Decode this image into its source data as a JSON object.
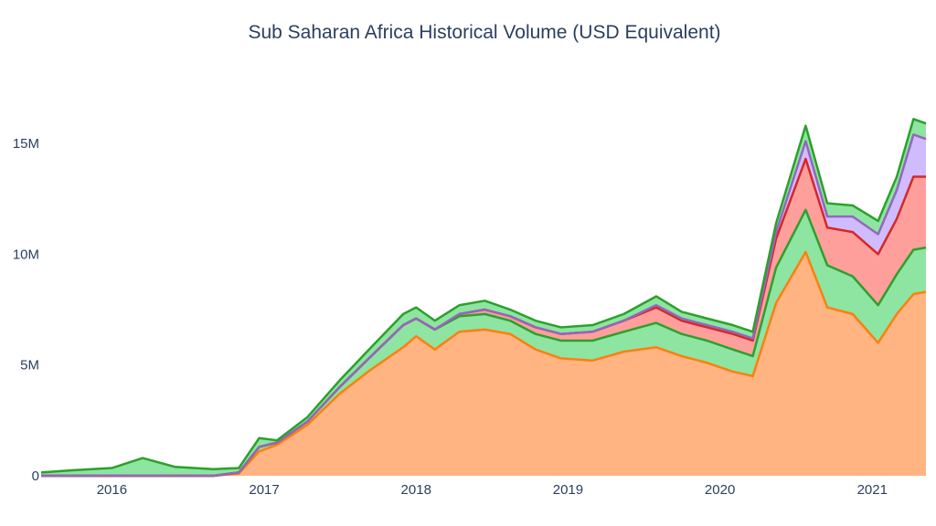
{
  "chart_data": {
    "type": "area",
    "title": "Sub Saharan Africa Historical Volume (USD Equivalent)",
    "xlabel": "",
    "ylabel": "",
    "x_ticks": [
      "2016",
      "2017",
      "2018",
      "2019",
      "2020",
      "2021"
    ],
    "y_ticks": [
      "0",
      "5M",
      "10M",
      "15M"
    ],
    "y_tick_values": [
      0,
      5000000,
      10000000,
      15000000
    ],
    "ylim": [
      0,
      19000000
    ],
    "xlim": [
      "2015-07-15",
      "2021-05-10"
    ],
    "stacked": true,
    "grid": false,
    "legend": "none",
    "dates": [
      "2015-07-15",
      "2015-10-01",
      "2016-01-01",
      "2016-03-15",
      "2016-06-01",
      "2016-09-01",
      "2016-11-01",
      "2016-12-20",
      "2017-02-01",
      "2017-04-15",
      "2017-07-01",
      "2017-09-15",
      "2017-12-01",
      "2018-01-01",
      "2018-02-15",
      "2018-04-15",
      "2018-06-15",
      "2018-08-15",
      "2018-10-15",
      "2018-12-15",
      "2019-03-01",
      "2019-05-15",
      "2019-08-01",
      "2019-10-01",
      "2019-12-01",
      "2020-02-01",
      "2020-03-20",
      "2020-05-15",
      "2020-07-25",
      "2020-09-15",
      "2020-11-15",
      "2021-01-15",
      "2021-03-01",
      "2021-04-10",
      "2021-05-10"
    ],
    "series": [
      {
        "color": "#ff7f0e",
        "fill": "#ffb482",
        "values": [
          0,
          0,
          0,
          0,
          0,
          0,
          100000,
          1100000,
          1400000,
          2300000,
          3700000,
          4800000,
          5800000,
          6300000,
          5700000,
          6500000,
          6600000,
          6400000,
          5700000,
          5300000,
          5200000,
          5600000,
          5800000,
          5400000,
          5100000,
          4700000,
          4500000,
          7800000,
          10100000,
          7600000,
          7300000,
          6000000,
          7300000,
          8200000,
          8300000
        ]
      },
      {
        "color": "#2ca02c",
        "fill": "#8de5a1",
        "values": [
          0,
          0,
          0,
          0,
          0,
          0,
          50000,
          200000,
          100000,
          150000,
          300000,
          600000,
          1000000,
          800000,
          900000,
          700000,
          700000,
          600000,
          700000,
          800000,
          900000,
          900000,
          1100000,
          1000000,
          1000000,
          1000000,
          900000,
          1600000,
          1900000,
          1900000,
          1700000,
          1700000,
          1800000,
          2000000,
          2000000
        ]
      },
      {
        "color": "#d62728",
        "fill": "#ff9f9b",
        "values": [
          0,
          0,
          0,
          0,
          0,
          0,
          0,
          0,
          0,
          0,
          0,
          0,
          0,
          0,
          0,
          100000,
          200000,
          200000,
          300000,
          300000,
          400000,
          500000,
          700000,
          600000,
          600000,
          700000,
          700000,
          1300000,
          2300000,
          1700000,
          2000000,
          2300000,
          2500000,
          3300000,
          3200000
        ]
      },
      {
        "color": "#9467bd",
        "fill": "#d0bbff",
        "values": [
          0,
          0,
          0,
          0,
          0,
          0,
          0,
          0,
          0,
          0,
          0,
          0,
          0,
          0,
          0,
          0,
          0,
          0,
          0,
          0,
          0,
          0,
          100000,
          100000,
          100000,
          100000,
          100000,
          300000,
          800000,
          500000,
          700000,
          900000,
          1300000,
          1900000,
          1700000
        ]
      },
      {
        "color": "#2ca02c",
        "fill": "#8de5a1",
        "values": [
          150000,
          250000,
          350000,
          800000,
          400000,
          300000,
          200000,
          400000,
          100000,
          200000,
          300000,
          400000,
          500000,
          500000,
          400000,
          400000,
          400000,
          300000,
          300000,
          300000,
          300000,
          300000,
          400000,
          300000,
          300000,
          300000,
          300000,
          400000,
          700000,
          600000,
          500000,
          600000,
          600000,
          700000,
          700000
        ]
      }
    ]
  }
}
